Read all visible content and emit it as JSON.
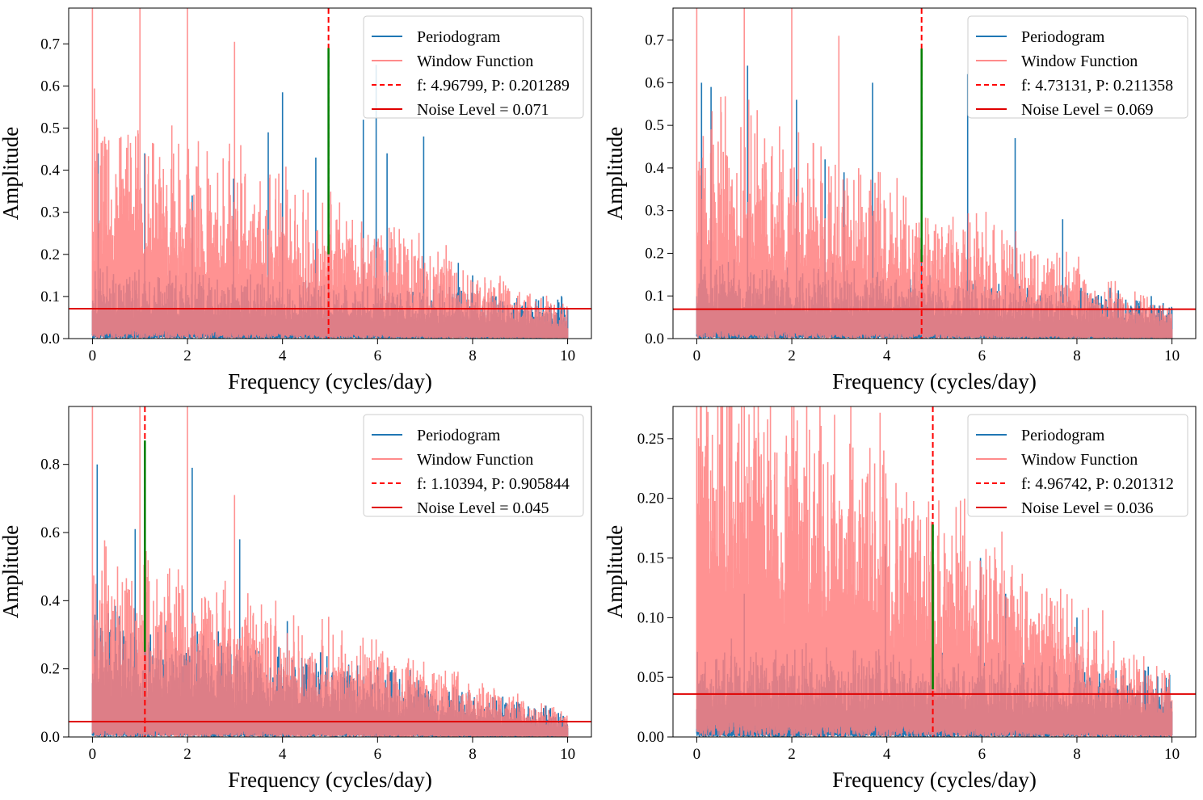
{
  "colors": {
    "periodogram": "#1f77b4",
    "window": "#ff7f7f",
    "dominant_frequency": "#ff0000",
    "noise_level": "#e00000",
    "peak_marker": "#008000",
    "background": "#ffffff"
  },
  "chart_data": [
    {
      "type": "line",
      "xlabel": "Frequency (cycles/day)",
      "ylabel": "Amplitude",
      "xlim": [
        -0.5,
        10.5
      ],
      "ylim": [
        0,
        0.785
      ],
      "xticks": [
        0,
        2,
        4,
        6,
        8,
        10
      ],
      "yticks": [
        0.0,
        0.1,
        0.2,
        0.3,
        0.4,
        0.5,
        0.6,
        0.7
      ],
      "ytick_labels": [
        "0.0",
        "0.1",
        "0.2",
        "0.3",
        "0.4",
        "0.5",
        "0.6",
        "0.7"
      ],
      "legend_position": "top-right",
      "legend": [
        "Periodogram",
        "Window Function",
        "f: 4.96799, P: 0.201289",
        "Noise Level = 0.071"
      ],
      "series": [
        {
          "name": "Periodogram",
          "style": "line",
          "x_range": [
            0,
            10
          ],
          "noise_floor": 0.09,
          "noise_level_end": 0.05,
          "prominent_peaks": [
            {
              "x": 0.12,
              "y": 0.44
            },
            {
              "x": 1.1,
              "y": 0.44
            },
            {
              "x": 2.1,
              "y": 0.34
            },
            {
              "x": 2.97,
              "y": 0.38
            },
            {
              "x": 3.7,
              "y": 0.49
            },
            {
              "x": 4.0,
              "y": 0.585
            },
            {
              "x": 4.7,
              "y": 0.43
            },
            {
              "x": 4.97,
              "y": 0.69
            },
            {
              "x": 5.7,
              "y": 0.52
            },
            {
              "x": 5.97,
              "y": 0.65
            },
            {
              "x": 6.2,
              "y": 0.44
            },
            {
              "x": 6.97,
              "y": 0.48
            },
            {
              "x": 7.7,
              "y": 0.18
            },
            {
              "x": 8.0,
              "y": 0.15
            }
          ]
        },
        {
          "name": "Window Function",
          "style": "line",
          "x_range": [
            0,
            10
          ],
          "noise_floor": 0.3,
          "noise_level_end": 0.04,
          "prominent_peaks": [
            {
              "x": 0.0,
              "y": 0.785
            },
            {
              "x": 1.0,
              "y": 0.785
            },
            {
              "x": 2.0,
              "y": 0.785
            },
            {
              "x": 2.99,
              "y": 0.705
            }
          ]
        },
        {
          "name": "f: 4.96799, P: 0.201289",
          "style": "vline-dashed",
          "x": 4.96799
        },
        {
          "name": "Noise Level = 0.071",
          "style": "hline",
          "y": 0.071
        },
        {
          "name": "",
          "style": "peak-marker",
          "x": 4.96799,
          "y0": 0.2,
          "y1": 0.69
        }
      ]
    },
    {
      "type": "line",
      "xlabel": "Frequency (cycles/day)",
      "ylabel": "Amplitude",
      "xlim": [
        -0.5,
        10.5
      ],
      "ylim": [
        0,
        0.775
      ],
      "xticks": [
        0,
        2,
        4,
        6,
        8,
        10
      ],
      "yticks": [
        0.0,
        0.1,
        0.2,
        0.3,
        0.4,
        0.5,
        0.6,
        0.7
      ],
      "ytick_labels": [
        "0.0",
        "0.1",
        "0.2",
        "0.3",
        "0.4",
        "0.5",
        "0.6",
        "0.7"
      ],
      "legend_position": "top-right",
      "legend": [
        "Periodogram",
        "Window Function",
        "f: 4.73131, P: 0.211358",
        "Noise Level = 0.069"
      ],
      "series": [
        {
          "name": "Periodogram",
          "style": "line",
          "x_range": [
            0,
            10
          ],
          "noise_floor": 0.1,
          "noise_level_end": 0.05,
          "prominent_peaks": [
            {
              "x": 0.1,
              "y": 0.6
            },
            {
              "x": 0.3,
              "y": 0.59
            },
            {
              "x": 1.07,
              "y": 0.64
            },
            {
              "x": 2.1,
              "y": 0.56
            },
            {
              "x": 2.7,
              "y": 0.42
            },
            {
              "x": 3.1,
              "y": 0.39
            },
            {
              "x": 3.7,
              "y": 0.6
            },
            {
              "x": 4.73,
              "y": 0.68
            },
            {
              "x": 5.7,
              "y": 0.62
            },
            {
              "x": 6.7,
              "y": 0.47
            },
            {
              "x": 7.7,
              "y": 0.28
            }
          ]
        },
        {
          "name": "Window Function",
          "style": "line",
          "x_range": [
            0,
            10
          ],
          "noise_floor": 0.3,
          "noise_level_end": 0.04,
          "prominent_peaks": [
            {
              "x": 0.0,
              "y": 0.775
            },
            {
              "x": 1.0,
              "y": 0.775
            },
            {
              "x": 2.0,
              "y": 0.775
            },
            {
              "x": 2.99,
              "y": 0.71
            }
          ]
        },
        {
          "name": "f: 4.73131, P: 0.211358",
          "style": "vline-dashed",
          "x": 4.73131
        },
        {
          "name": "Noise Level = 0.069",
          "style": "hline",
          "y": 0.069
        },
        {
          "name": "",
          "style": "peak-marker",
          "x": 4.73131,
          "y0": 0.18,
          "y1": 0.68
        }
      ]
    },
    {
      "type": "line",
      "xlabel": "Frequency (cycles/day)",
      "ylabel": "Amplitude",
      "xlim": [
        -0.5,
        10.5
      ],
      "ylim": [
        0,
        0.97
      ],
      "xticks": [
        0,
        2,
        4,
        6,
        8,
        10
      ],
      "yticks": [
        0.0,
        0.2,
        0.4,
        0.6,
        0.8
      ],
      "ytick_labels": [
        "0.0",
        "0.2",
        "0.4",
        "0.6",
        "0.8"
      ],
      "legend_position": "top-right",
      "legend": [
        "Periodogram",
        "Window Function",
        "f: 1.10394, P: 0.905844",
        "Noise Level = 0.045"
      ],
      "series": [
        {
          "name": "Periodogram",
          "style": "line",
          "x_range": [
            0,
            10
          ],
          "noise_floor": 0.2,
          "noise_level_end": 0.04,
          "prominent_peaks": [
            {
              "x": 0.1,
              "y": 0.8
            },
            {
              "x": 0.9,
              "y": 0.61
            },
            {
              "x": 1.1,
              "y": 0.86
            },
            {
              "x": 2.1,
              "y": 0.79
            },
            {
              "x": 3.1,
              "y": 0.58
            },
            {
              "x": 4.1,
              "y": 0.34
            }
          ]
        },
        {
          "name": "Window Function",
          "style": "line",
          "x_range": [
            0,
            10
          ],
          "noise_floor": 0.3,
          "noise_level_end": 0.04,
          "prominent_peaks": [
            {
              "x": 0.0,
              "y": 0.97
            },
            {
              "x": 1.0,
              "y": 0.97
            },
            {
              "x": 2.0,
              "y": 0.97
            },
            {
              "x": 2.99,
              "y": 0.71
            },
            {
              "x": 6.0,
              "y": 0.1
            },
            {
              "x": 7.0,
              "y": 0.09
            }
          ]
        },
        {
          "name": "f: 1.10394, P: 0.905844",
          "style": "vline-dashed",
          "x": 1.10394
        },
        {
          "name": "Noise Level = 0.045",
          "style": "hline",
          "y": 0.045
        },
        {
          "name": "",
          "style": "peak-marker",
          "x": 1.10394,
          "y0": 0.25,
          "y1": 0.87
        }
      ]
    },
    {
      "type": "line",
      "xlabel": "Frequency (cycles/day)",
      "ylabel": "Amplitude",
      "xlim": [
        -0.5,
        10.5
      ],
      "ylim": [
        0,
        0.277
      ],
      "xticks": [
        0,
        2,
        4,
        6,
        8,
        10
      ],
      "yticks": [
        0.0,
        0.05,
        0.1,
        0.15,
        0.2,
        0.25
      ],
      "ytick_labels": [
        "0.00",
        "0.05",
        "0.10",
        "0.15",
        "0.20",
        "0.25"
      ],
      "legend_position": "top-right",
      "legend": [
        "Periodogram",
        "Window Function",
        "f: 4.96742, P: 0.201312",
        "Noise Level = 0.036"
      ],
      "series": [
        {
          "name": "Periodogram",
          "style": "line",
          "x_range": [
            0,
            10
          ],
          "noise_floor": 0.04,
          "noise_level_end": 0.03,
          "prominent_peaks": [
            {
              "x": 1.0,
              "y": 0.12
            },
            {
              "x": 3.97,
              "y": 0.16
            },
            {
              "x": 4.97,
              "y": 0.178
            },
            {
              "x": 5.97,
              "y": 0.15
            },
            {
              "x": 6.5,
              "y": 0.12
            },
            {
              "x": 8.0,
              "y": 0.1
            }
          ]
        },
        {
          "name": "Window Function",
          "style": "line",
          "x_range": [
            0,
            10
          ],
          "noise_floor": 0.2,
          "noise_level_end": 0.025,
          "prominent_peaks": [
            {
              "x": 0.0,
              "y": 0.277
            },
            {
              "x": 1.0,
              "y": 0.277
            },
            {
              "x": 2.0,
              "y": 0.277
            },
            {
              "x": 2.9,
              "y": 0.27
            },
            {
              "x": 4.0,
              "y": 0.2
            }
          ]
        },
        {
          "name": "f: 4.96742, P: 0.201312",
          "style": "vline-dashed",
          "x": 4.96742
        },
        {
          "name": "Noise Level = 0.036",
          "style": "hline",
          "y": 0.036
        },
        {
          "name": "",
          "style": "peak-marker",
          "x": 4.96742,
          "y0": 0.04,
          "y1": 0.178
        }
      ]
    }
  ]
}
